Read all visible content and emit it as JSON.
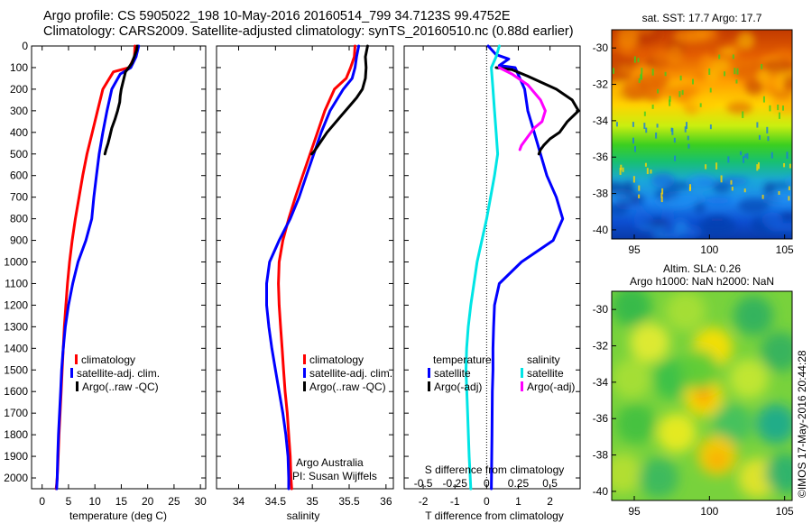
{
  "header": {
    "line1": "Argo profile: CS 5905022_198 10-May-2016 20160514_799 34.7123S 99.4752E",
    "line2": "Climatology: CARS2009. Satellite-adjusted climatology: synTS_20160510.nc (0.88d earlier)"
  },
  "colors": {
    "climatology": "#ff0000",
    "satellite": "#0000ff",
    "argo": "#000000",
    "sat_salinity": "#00e5e5",
    "argo_adj_salinity": "#ff00ff"
  },
  "chart_data": [
    {
      "type": "line",
      "id": "temperature-profile",
      "xlabel": "temperature (deg C)",
      "ylabel": "",
      "xlim": [
        -2,
        31
      ],
      "ylim": [
        2050,
        0
      ],
      "xticks": [
        0,
        5,
        10,
        15,
        20,
        25,
        30
      ],
      "yticks": [
        0,
        100,
        200,
        300,
        400,
        500,
        600,
        700,
        800,
        900,
        1000,
        1100,
        1200,
        1300,
        1400,
        1500,
        1600,
        1700,
        1800,
        1900,
        2000
      ],
      "legend": [
        "climatology",
        "satellite-adj. clim.",
        "Argo(..raw -QC)"
      ],
      "legend_position": "lower-center",
      "series": [
        {
          "name": "climatology",
          "color": "#ff0000",
          "x": [
            17.6,
            17.5,
            16.5,
            13.5,
            11.5,
            10.5,
            9.5,
            8.5,
            7.7,
            7.0,
            6.3,
            5.7,
            5.2,
            4.8,
            4.5,
            4.2,
            4.0,
            3.8,
            3.6,
            3.4,
            3.2,
            3.05,
            2.95,
            2.85,
            2.75,
            2.65
          ],
          "y": [
            0,
            50,
            100,
            120,
            200,
            300,
            400,
            500,
            600,
            700,
            800,
            900,
            1000,
            1100,
            1200,
            1300,
            1400,
            1500,
            1600,
            1700,
            1800,
            1900,
            1950,
            2000,
            2030,
            2050
          ]
        },
        {
          "name": "satellite-adj. clim.",
          "color": "#0000ff",
          "x": [
            18.3,
            17.8,
            16.8,
            14.8,
            13.2,
            12.3,
            11.5,
            10.8,
            10.3,
            9.8,
            9.4,
            8.3,
            6.8,
            5.8,
            5.0,
            4.4,
            4.0,
            3.7,
            3.5,
            3.3,
            3.1,
            2.95,
            2.85,
            2.75
          ],
          "y": [
            0,
            50,
            100,
            130,
            200,
            300,
            400,
            500,
            600,
            700,
            800,
            900,
            1000,
            1100,
            1200,
            1300,
            1400,
            1500,
            1600,
            1700,
            1800,
            1900,
            2000,
            2050
          ]
        },
        {
          "name": "Argo(..raw -QC)",
          "color": "#000000",
          "x": [
            18.0,
            17.9,
            17.0,
            15.8,
            15.0,
            14.8,
            14.7,
            14.3,
            13.8,
            13.2,
            12.8,
            12.5,
            12.1,
            11.9
          ],
          "y": [
            0,
            20,
            80,
            120,
            200,
            230,
            260,
            300,
            340,
            380,
            420,
            450,
            480,
            500
          ]
        }
      ]
    },
    {
      "type": "line",
      "id": "salinity-profile",
      "xlabel": "salinity",
      "ylabel": "",
      "xlim": [
        33.7,
        36.1
      ],
      "ylim": [
        2050,
        0
      ],
      "xticks": [
        34,
        34.5,
        35,
        35.5,
        36
      ],
      "legend": [
        "climatology",
        "satellite-adj. clim.",
        "Argo(..raw -QC)"
      ],
      "legend_position": "lower-right",
      "annotations": [
        "Argo Australia",
        "PI: Susan Wijffels"
      ],
      "series": [
        {
          "name": "climatology",
          "color": "#ff0000",
          "x": [
            35.58,
            35.57,
            35.52,
            35.46,
            35.3,
            35.17,
            35.07,
            34.97,
            34.87,
            34.77,
            34.68,
            34.6,
            34.55,
            34.54,
            34.55,
            34.57,
            34.59,
            34.61,
            34.63,
            34.66,
            34.68,
            34.7,
            34.71,
            34.72
          ],
          "y": [
            0,
            50,
            100,
            150,
            200,
            300,
            400,
            500,
            600,
            700,
            800,
            900,
            1000,
            1100,
            1200,
            1300,
            1400,
            1500,
            1600,
            1700,
            1800,
            1900,
            2000,
            2050
          ]
        },
        {
          "name": "satellite-adj. clim.",
          "color": "#0000ff",
          "x": [
            35.63,
            35.6,
            35.58,
            35.54,
            35.42,
            35.24,
            35.12,
            35.02,
            34.92,
            34.82,
            34.7,
            34.55,
            34.42,
            34.38,
            34.38,
            34.41,
            34.45,
            34.5,
            34.55,
            34.6,
            34.64,
            34.67,
            34.68,
            34.68
          ],
          "y": [
            0,
            50,
            100,
            150,
            200,
            300,
            400,
            500,
            600,
            700,
            800,
            900,
            1000,
            1100,
            1200,
            1300,
            1400,
            1500,
            1600,
            1700,
            1800,
            1900,
            2000,
            2050
          ]
        },
        {
          "name": "Argo(..raw -QC)",
          "color": "#000000",
          "x": [
            35.75,
            35.72,
            35.73,
            35.72,
            35.68,
            35.6,
            35.5,
            35.4,
            35.3,
            35.2,
            35.12,
            35.06,
            35.02,
            34.99
          ],
          "y": [
            0,
            50,
            100,
            150,
            200,
            240,
            280,
            320,
            360,
            400,
            440,
            470,
            490,
            500
          ]
        }
      ]
    },
    {
      "type": "line",
      "id": "difference-profile",
      "xlabel": "T difference from climatology",
      "xlabel_top": "S difference from climatology",
      "xlim": [
        -2.6,
        2.95
      ],
      "ylim": [
        2050,
        0
      ],
      "xticks": [
        -2,
        -1,
        0,
        1,
        2
      ],
      "xticks_salinity": [
        -0.5,
        -0.25,
        0,
        0.25,
        0.5
      ],
      "legend_groups": [
        {
          "title": "temperature",
          "items": [
            "satellite",
            "Argo(-adj)"
          ]
        },
        {
          "title": "salinity",
          "items": [
            "satellite",
            "Argo(-adj)"
          ]
        }
      ],
      "series": [
        {
          "name": "temperature satellite",
          "color": "#0000ff",
          "x": [
            0.05,
            0.3,
            0.7,
            0.4,
            0.9,
            1.2,
            1.3,
            1.5,
            1.7,
            1.9,
            2.2,
            2.4,
            2.1,
            1.1,
            0.4,
            0.25,
            0.22,
            0.2,
            0.2,
            0.18,
            0.17,
            0.15
          ],
          "y": [
            0,
            40,
            60,
            90,
            100,
            200,
            300,
            400,
            500,
            600,
            700,
            800,
            900,
            1000,
            1100,
            1200,
            1300,
            1400,
            1500,
            1600,
            1800,
            2050
          ]
        },
        {
          "name": "temperature Argo(-adj)",
          "color": "#000000",
          "x": [
            0.3,
            0.8,
            1.3,
            2.2,
            2.7,
            2.9,
            2.55,
            2.3,
            2.0,
            1.8,
            1.7,
            1.65
          ],
          "y": [
            100,
            110,
            140,
            200,
            250,
            300,
            350,
            400,
            430,
            460,
            480,
            500
          ]
        },
        {
          "name": "salinity satellite",
          "color": "#00e5e5",
          "x": [
            0.4,
            0.3,
            0.15,
            0.2,
            0.25,
            0.3,
            0.35,
            0.25,
            0.0,
            -0.15,
            -0.3,
            -0.4,
            -0.5,
            -0.58,
            -0.63,
            -0.65,
            -0.6,
            -0.55,
            -0.5
          ],
          "y": [
            0,
            50,
            100,
            200,
            300,
            400,
            500,
            600,
            800,
            900,
            1000,
            1100,
            1200,
            1300,
            1400,
            1500,
            1700,
            1900,
            2050
          ]
        },
        {
          "name": "salinity Argo(-adj)",
          "color": "#ff00ff",
          "x": [
            0.4,
            0.8,
            1.3,
            1.7,
            1.85,
            1.75,
            1.5,
            1.3,
            1.1,
            1.05
          ],
          "y": [
            100,
            130,
            180,
            250,
            300,
            350,
            380,
            420,
            460,
            480
          ]
        }
      ]
    },
    {
      "type": "heatmap",
      "id": "sst-map",
      "title": "sat. SST: 17.7 Argo: 17.7",
      "xlim": [
        93.5,
        105.5
      ],
      "ylim": [
        -40.5,
        -29
      ],
      "xticks": [
        95,
        100,
        105
      ],
      "yticks": [
        -30,
        -32,
        -34,
        -36,
        -38,
        -40
      ],
      "colormap": "jet",
      "gradient": "warm north to cold south"
    },
    {
      "type": "heatmap",
      "id": "sla-map",
      "title": "Altim. SLA: 0.26",
      "subtitle": "Argo h1000: NaN h2000: NaN",
      "xlim": [
        93.5,
        105.5
      ],
      "ylim": [
        -40.5,
        -29
      ],
      "xticks": [
        95,
        100,
        105
      ],
      "yticks": [
        -30,
        -32,
        -34,
        -36,
        -38,
        -40
      ],
      "colormap": "jet"
    }
  ],
  "stamp": "©IMOS 17-May-2016 20:44:28"
}
